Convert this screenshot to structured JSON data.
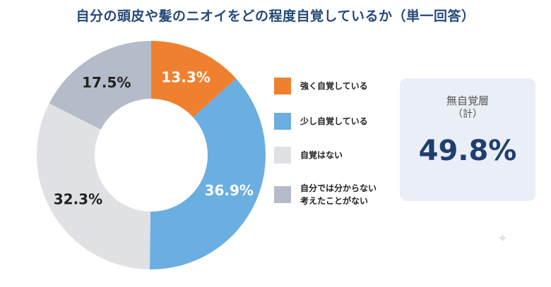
{
  "header": {
    "title": "自分の頭皮や髪のニオイをどの程度自覚しているか（単一回答）"
  },
  "chart_data": {
    "type": "pie",
    "donut": true,
    "legend_position": "right",
    "title": "自分の頭皮や髪のニオイをどの程度自覚しているか（単一回答）",
    "categories": [
      "強く自覚している",
      "少し自覚している",
      "自覚はない",
      "自分では分からない\n考えたことがない"
    ],
    "values": [
      13.3,
      36.9,
      32.3,
      17.5
    ],
    "value_labels": [
      "13.3%",
      "36.9%",
      "32.3%",
      "17.5%"
    ],
    "colors": [
      "#ef8030",
      "#6aaee2",
      "#dfe1e5",
      "#b3bcc8"
    ],
    "label_colors": [
      "#ffffff",
      "#ffffff",
      "#222222",
      "#222222"
    ]
  },
  "summary": {
    "label": "無自覚層",
    "sublabel": "（計）",
    "value": "49.8%"
  }
}
